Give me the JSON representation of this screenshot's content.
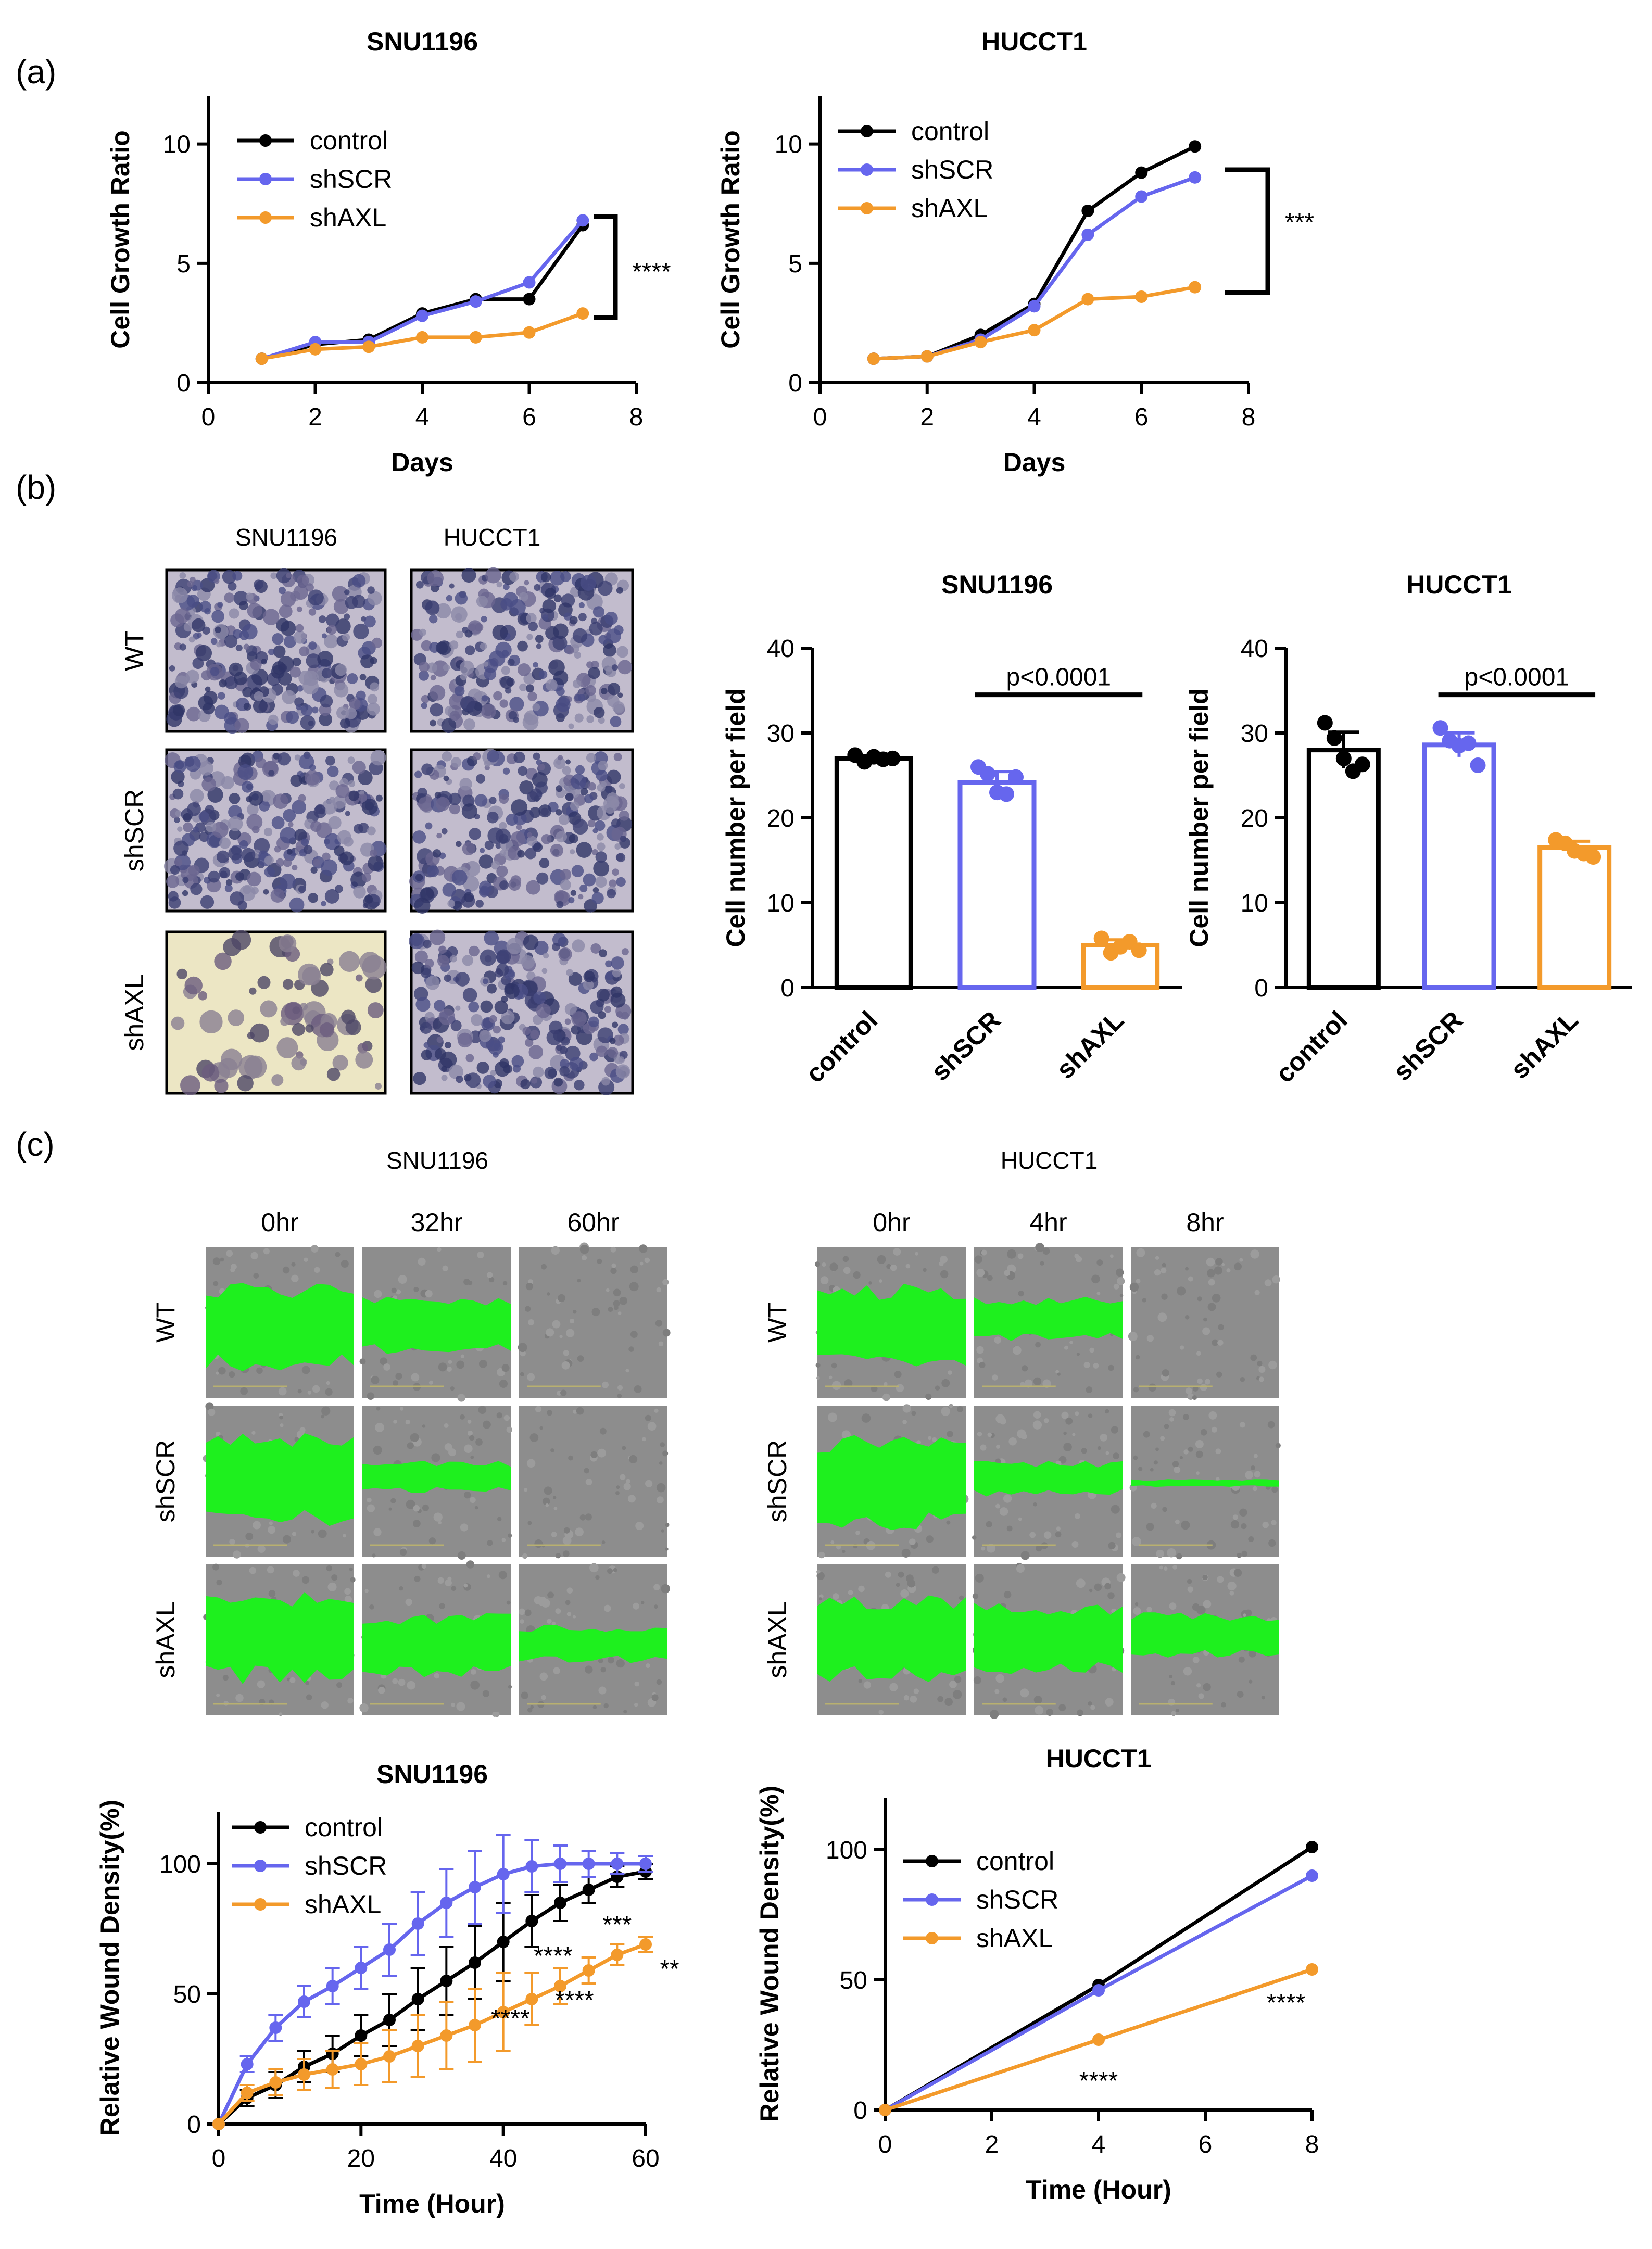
{
  "panel_labels": [
    "(a)",
    "(b)",
    "(c)"
  ],
  "colors": {
    "control": "#000000",
    "shSCR": "#6666ee",
    "shAXL": "#f39a2b"
  },
  "section_b": {
    "col_labels": [
      "SNU1196",
      "HUCCT1"
    ],
    "row_labels": [
      "WT",
      "shSCR",
      "shAXL"
    ]
  },
  "section_c": {
    "SNU1196": {
      "title": "SNU1196",
      "times": [
        "0hr",
        "32hr",
        "60hr"
      ]
    },
    "HUCCT1": {
      "title": "HUCCT1",
      "times": [
        "0hr",
        "4hr",
        "8hr"
      ]
    },
    "row_labels": [
      "WT",
      "shSCR",
      "shAXL"
    ]
  },
  "chart_data": [
    {
      "type": "line",
      "title": "SNU1196",
      "xlabel": "Days",
      "ylabel": "Cell Growth Ratio",
      "xlim": [
        0,
        8
      ],
      "ylim": [
        0,
        12
      ],
      "xticks": [
        0,
        2,
        4,
        6,
        8
      ],
      "yticks": [
        0,
        5,
        10
      ],
      "x": [
        1,
        2,
        3,
        4,
        5,
        6,
        7
      ],
      "series": [
        {
          "name": "control",
          "values": [
            1.0,
            1.6,
            1.8,
            2.9,
            3.5,
            3.5,
            6.6
          ]
        },
        {
          "name": "shSCR",
          "values": [
            1.0,
            1.7,
            1.7,
            2.8,
            3.4,
            4.2,
            6.8
          ]
        },
        {
          "name": "shAXL",
          "values": [
            1.0,
            1.4,
            1.5,
            1.9,
            1.9,
            2.1,
            2.9
          ]
        }
      ],
      "annotation": "****",
      "legend": "top-left"
    },
    {
      "type": "line",
      "title": "HUCCT1",
      "xlabel": "Days",
      "ylabel": "Cell Growth Ratio",
      "xlim": [
        0,
        8
      ],
      "ylim": [
        0,
        12
      ],
      "xticks": [
        0,
        2,
        4,
        6,
        8
      ],
      "yticks": [
        0,
        5,
        10
      ],
      "x": [
        1,
        2,
        3,
        4,
        5,
        6,
        7
      ],
      "series": [
        {
          "name": "control",
          "values": [
            1.0,
            1.1,
            2.0,
            3.3,
            7.2,
            8.8,
            9.9
          ]
        },
        {
          "name": "shSCR",
          "values": [
            1.0,
            1.1,
            1.8,
            3.2,
            6.2,
            7.8,
            8.6
          ]
        },
        {
          "name": "shAXL",
          "values": [
            1.0,
            1.1,
            1.7,
            2.2,
            3.5,
            3.6,
            4.0
          ]
        }
      ],
      "annotation": "***",
      "legend": "top-left"
    },
    {
      "type": "bar",
      "title": "SNU1196",
      "ylabel": "Cell number per field",
      "ylim": [
        0,
        40
      ],
      "yticks": [
        0,
        10,
        20,
        30,
        40
      ],
      "categories": [
        "control",
        "shSCR",
        "shAXL"
      ],
      "values": [
        27,
        24.2,
        5
      ],
      "points": [
        [
          27.4,
          26.6,
          27.2,
          26.9,
          27.0
        ],
        [
          26.0,
          25.2,
          23.0,
          22.8,
          24.8
        ],
        [
          5.8,
          4.1,
          4.8,
          5.4,
          4.4
        ]
      ],
      "annotation": "p<0.0001"
    },
    {
      "type": "bar",
      "title": "HUCCT1",
      "ylabel": "Cell number per field",
      "ylim": [
        0,
        40
      ],
      "yticks": [
        0,
        10,
        20,
        30,
        40
      ],
      "categories": [
        "control",
        "shSCR",
        "shAXL"
      ],
      "values": [
        28,
        28.6,
        16.5
      ],
      "points": [
        [
          31.2,
          29.4,
          27.0,
          25.5,
          26.3
        ],
        [
          30.6,
          29.1,
          28.5,
          28.8,
          26.2
        ],
        [
          17.4,
          17.0,
          16.1,
          15.8,
          15.4
        ]
      ],
      "annotation": "p<0.0001"
    },
    {
      "type": "line",
      "title": "SNU1196",
      "xlabel": "Time (Hour)",
      "ylabel": "Relative Wound Density(%)",
      "xlim": [
        0,
        60
      ],
      "ylim": [
        0,
        120
      ],
      "xticks": [
        0,
        20,
        40,
        60
      ],
      "yticks": [
        0,
        50,
        100
      ],
      "x": [
        0,
        4,
        8,
        12,
        16,
        20,
        24,
        28,
        32,
        36,
        40,
        44,
        48,
        52,
        56,
        60
      ],
      "series": [
        {
          "name": "control",
          "values": [
            0,
            10,
            15,
            22,
            27,
            34,
            40,
            48,
            55,
            62,
            70,
            78,
            85,
            90,
            95,
            97
          ]
        },
        {
          "name": "shSCR",
          "values": [
            0,
            23,
            37,
            47,
            53,
            60,
            67,
            77,
            85,
            91,
            96,
            99,
            100,
            100,
            100,
            100
          ]
        },
        {
          "name": "shAXL",
          "values": [
            0,
            12,
            16,
            19,
            21,
            23,
            26,
            30,
            34,
            38,
            43,
            48,
            53,
            59,
            65,
            69
          ]
        }
      ],
      "error": [
        0,
        3,
        5,
        6,
        7,
        8,
        10,
        12,
        13,
        14,
        15,
        10,
        7,
        5,
        4,
        3
      ],
      "annotations": [
        "***",
        "****",
        "**",
        "****",
        "****"
      ],
      "legend": "top-left"
    },
    {
      "type": "line",
      "title": "HUCCT1",
      "xlabel": "Time (Hour)",
      "ylabel": "Relative Wound Density(%)",
      "xlim": [
        0,
        8
      ],
      "ylim": [
        0,
        120
      ],
      "xticks": [
        0,
        2,
        4,
        6,
        8
      ],
      "yticks": [
        0,
        50,
        100
      ],
      "x": [
        0,
        4,
        8
      ],
      "series": [
        {
          "name": "control",
          "values": [
            0,
            48,
            101
          ]
        },
        {
          "name": "shSCR",
          "values": [
            0,
            46,
            90
          ]
        },
        {
          "name": "shAXL",
          "values": [
            0,
            27,
            54
          ]
        }
      ],
      "annotations": [
        "****",
        "****"
      ],
      "legend": "top-left"
    }
  ]
}
